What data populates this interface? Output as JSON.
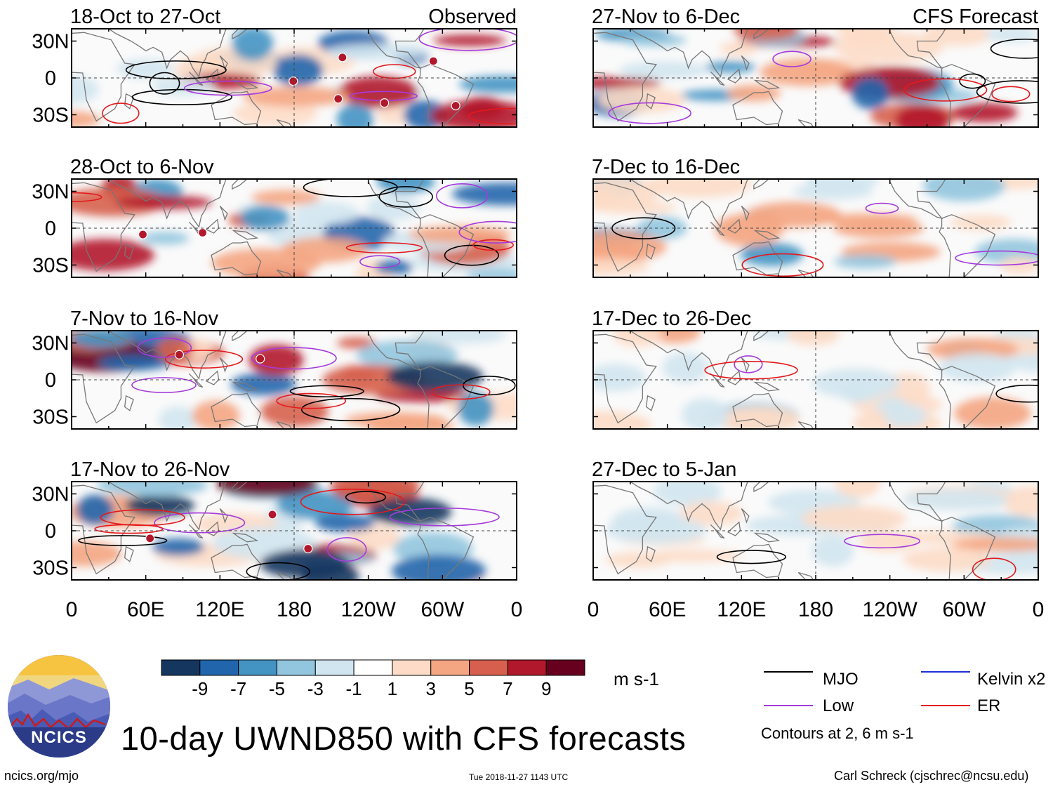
{
  "chart_data": {
    "type": "heatmap",
    "title": "10-day UWND850 with CFS forecasts",
    "units": "m s-1",
    "observed_label": "Observed",
    "forecast_label": "CFS Forecast",
    "x_tick_labels": [
      "0",
      "60E",
      "120E",
      "180",
      "120W",
      "60W",
      "0"
    ],
    "y_tick_labels": [
      "30N",
      "0",
      "30S"
    ],
    "xlim": [
      0,
      360
    ],
    "ylim": [
      -40,
      40
    ],
    "colorbar": {
      "labels": [
        "-9",
        "-7",
        "-5",
        "-3",
        "-1",
        "1",
        "3",
        "5",
        "7",
        "9"
      ],
      "colors": [
        "#14365f",
        "#2166ac",
        "#4393c3",
        "#92c5de",
        "#d1e5f0",
        "#ffffff",
        "#fddbc7",
        "#f4a582",
        "#d6604d",
        "#b2182b",
        "#67001f"
      ]
    },
    "panels": [
      {
        "period": "18-Oct to 27-Oct",
        "source": "Observed",
        "storm_markers": 6
      },
      {
        "period": "28-Oct to 6-Nov",
        "source": "Observed",
        "storm_markers": 2
      },
      {
        "period": "7-Nov to 16-Nov",
        "source": "Observed",
        "storm_markers": 2
      },
      {
        "period": "17-Nov to 26-Nov",
        "source": "Observed",
        "storm_markers": 3
      },
      {
        "period": "27-Nov to 6-Dec",
        "source": "CFS Forecast",
        "storm_markers": 0
      },
      {
        "period": "7-Dec to 16-Dec",
        "source": "CFS Forecast",
        "storm_markers": 0
      },
      {
        "period": "17-Dec to 26-Dec",
        "source": "CFS Forecast",
        "storm_markers": 0
      },
      {
        "period": "27-Dec to 5-Jan",
        "source": "CFS Forecast",
        "storm_markers": 0
      }
    ],
    "legend": [
      {
        "label": "MJO",
        "color": "#000000"
      },
      {
        "label": "Kelvin x2",
        "color": "#1f2fd6"
      },
      {
        "label": "Low",
        "color": "#a63bdb"
      },
      {
        "label": "ER",
        "color": "#e31a1c"
      }
    ],
    "contour_note": "Contours at 2, 6 m s-1"
  },
  "footer": {
    "logo_text": "NCICS",
    "url": "ncics.org/mjo",
    "timestamp": "Tue 2018-11-27 1143 UTC",
    "credit": "Carl Schreck (cjschrec@ncsu.edu)"
  }
}
